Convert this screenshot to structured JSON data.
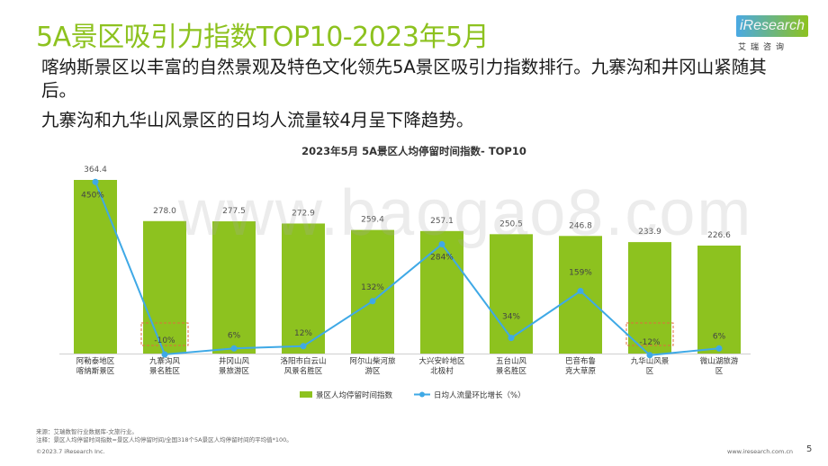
{
  "page": {
    "title": "5A景区吸引力指数TOP10-2023年5月",
    "logo_text": "iResearch",
    "logo_sub": "艾瑞咨询",
    "paragraphs": [
      "喀纳斯景区以丰富的自然景观及特色文化领先5A景区吸引力指数排行。九寨沟和井冈山紧随其后。",
      "九寨沟和九华山风景区的日均人流量较4月呈下降趋势。"
    ],
    "notes": [
      "来源：艾瑞数智行业数据库-文旅行业。",
      "注释：景区人均停留时间指数=景区人均停留时间/全国318个5A景区人均停留时间的平均值*100。"
    ],
    "copyright": "©2023.7 iResearch Inc.",
    "website": "www.iresearch.com.cn",
    "page_number": "5",
    "watermark": "www.baogao8.com"
  },
  "chart_data": {
    "type": "bar",
    "title": "2023年5月 5A景区人均停留时间指数- TOP10",
    "categories": [
      "阿勒泰地区喀纳斯景区",
      "九寨沟风景名胜区",
      "井冈山风景旅游区",
      "洛阳市白云山风景名胜区",
      "阿尔山柴河旅游区",
      "大兴安岭地区北极村",
      "五台山风景名胜区",
      "巴音布鲁克大草原",
      "九华山风景区",
      "微山湖旅游区"
    ],
    "category_lines": [
      [
        "阿勒泰地区",
        "喀纳斯景区"
      ],
      [
        "九寨沟风",
        "景名胜区"
      ],
      [
        "井冈山风",
        "景旅游区"
      ],
      [
        "洛阳市白云山",
        "风景名胜区"
      ],
      [
        "阿尔山柴河旅",
        "游区"
      ],
      [
        "大兴安岭地区",
        "北极村"
      ],
      [
        "五台山风",
        "景名胜区"
      ],
      [
        "巴音布鲁",
        "克大草原"
      ],
      [
        "九华山风景",
        "区"
      ],
      [
        "微山湖旅游",
        "区"
      ]
    ],
    "series": [
      {
        "name": "景区人均停留时间指数",
        "type": "bar",
        "color": "#8dc21f",
        "values": [
          364.4,
          278.0,
          277.5,
          272.9,
          259.4,
          257.1,
          250.5,
          246.8,
          233.9,
          226.6
        ],
        "labels": [
          "364.4",
          "278.0",
          "277.5",
          "272.9",
          "259.4",
          "257.1",
          "250.5",
          "246.8",
          "233.9",
          "226.6"
        ]
      },
      {
        "name": "日均人流量环比增长（%）",
        "type": "line",
        "color": "#3fa9e6",
        "values": [
          450,
          -10,
          6,
          12,
          132,
          284,
          34,
          159,
          -12,
          6
        ],
        "labels": [
          "450%",
          "-10%",
          "6%",
          "12%",
          "132%",
          "284%",
          "34%",
          "159%",
          "-12%",
          "6%"
        ]
      }
    ],
    "highlighted_categories": [
      "九寨沟风景名胜区",
      "九华山风景区"
    ],
    "highlight_color": "#e06d3c",
    "legend_position": "bottom",
    "grid": false
  }
}
